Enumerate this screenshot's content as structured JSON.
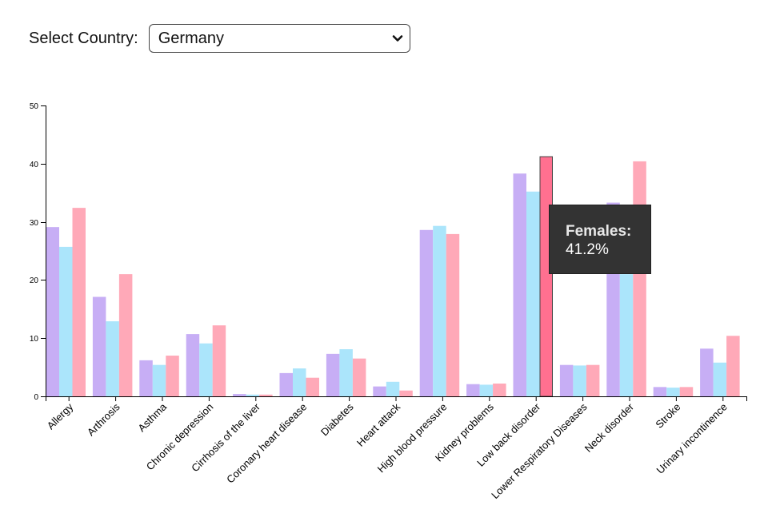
{
  "controls": {
    "label": "Select Country:",
    "selected": "Germany"
  },
  "colors": {
    "series_1": "#c7aef5",
    "series_2": "#abe5fb",
    "series_3": "#ffa9b8",
    "highlight": "#ff7090"
  },
  "tooltip": {
    "title": "Females:",
    "value": "41.2%"
  },
  "chart_data": {
    "type": "bar",
    "categories": [
      "Allergy",
      "Arthrosis",
      "Asthma",
      "Chronic depression",
      "Cirrhosis of the liver",
      "Coronary heart disease",
      "Diabetes",
      "Heart attack",
      "High blood pressure",
      "Kidney problems",
      "Low back disorder",
      "Lower Respiratory Diseases",
      "Neck disorder",
      "Stroke",
      "Urinary incontinence"
    ],
    "series": [
      {
        "values": [
          29.1,
          17.1,
          6.2,
          10.7,
          0.4,
          4.0,
          7.3,
          1.7,
          28.6,
          2.1,
          38.3,
          5.4,
          33.3,
          1.6,
          8.2
        ]
      },
      {
        "values": [
          25.7,
          12.9,
          5.4,
          9.1,
          0.3,
          4.8,
          8.1,
          2.5,
          29.3,
          2.0,
          35.2,
          5.3,
          21.0,
          1.5,
          5.8
        ]
      },
      {
        "name": "Females",
        "values": [
          32.4,
          21.0,
          7.0,
          12.2,
          0.3,
          3.2,
          6.5,
          1.0,
          27.9,
          2.2,
          41.2,
          5.4,
          40.4,
          1.6,
          10.4
        ]
      }
    ],
    "highlight": {
      "series": 2,
      "category": 10
    },
    "ylim": [
      0,
      50
    ],
    "yticks": [
      0,
      10,
      20,
      30,
      40,
      50
    ],
    "grid": false,
    "xlabel": "",
    "ylabel": ""
  }
}
